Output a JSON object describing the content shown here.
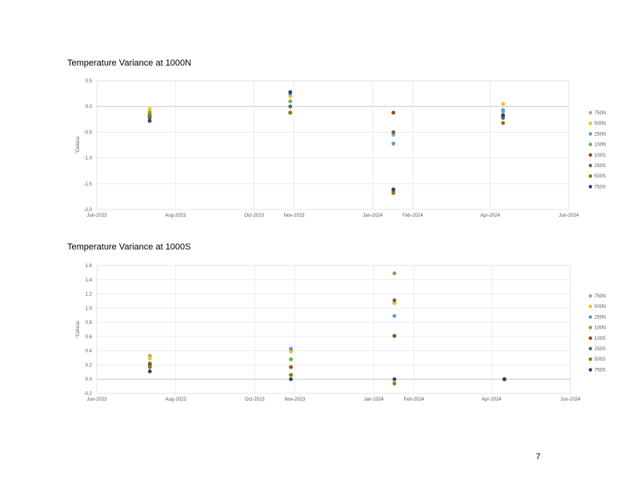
{
  "page_number": "7",
  "series_colors": {
    "750N": "#a5a5a5",
    "500N": "#ffc000",
    "250N": "#5b9bd5",
    "100N": "#70ad47",
    "100S": "#9e480e",
    "250S": "#636363",
    "500S": "#997300",
    "750S": "#264478"
  },
  "chart_data": [
    {
      "type": "scatter",
      "title": "Temperature Variance at 1000N",
      "xlabel": "",
      "ylabel": "°Celsius",
      "x_ticks": [
        "Jun-2023",
        "Aug-2023",
        "Oct-2023",
        "Nov-2023",
        "Jan-2024",
        "Feb-2024",
        "Apr-2024",
        "Jun-2024"
      ],
      "y_ticks": [
        "0.5",
        "0.0",
        "-0.5",
        "-1.0",
        "-1.5",
        "-2.0"
      ],
      "ylim": [
        -2.0,
        0.5
      ],
      "grid": true,
      "legend_position": "right",
      "x_dates": [
        "2023-07-12",
        "2023-10-29",
        "2024-01-17",
        "2024-04-11"
      ],
      "series": [
        {
          "name": "750N",
          "values": [
            -0.1,
            0.2,
            -0.55,
            -0.1
          ]
        },
        {
          "name": "500N",
          "values": [
            -0.05,
            0.2,
            -1.65,
            0.05
          ]
        },
        {
          "name": "250N",
          "values": [
            -0.15,
            0.25,
            -0.72,
            -0.07
          ]
        },
        {
          "name": "100N",
          "values": [
            -0.12,
            0.1,
            -1.63,
            -0.2
          ]
        },
        {
          "name": "100S",
          "values": [
            -0.2,
            -0.12,
            -0.12,
            -0.17
          ]
        },
        {
          "name": "250S",
          "values": [
            -0.22,
            0.0,
            -0.5,
            -0.22
          ]
        },
        {
          "name": "500S",
          "values": [
            -0.17,
            -0.12,
            -1.68,
            -0.32
          ]
        },
        {
          "name": "750S",
          "values": [
            -0.28,
            0.28,
            -1.61,
            -0.17
          ]
        }
      ]
    },
    {
      "type": "scatter",
      "title": "Temperature Variance at 1000S",
      "xlabel": "",
      "ylabel": "°Celsius",
      "x_ticks": [
        "Jun-2023",
        "Aug-2023",
        "Oct-2023",
        "Nov-2023",
        "Jan-2024",
        "Feb-2024",
        "Apr-2024",
        "Jun-2024"
      ],
      "y_ticks": [
        "1.6",
        "1.4",
        "1.2",
        "1.0",
        "0.8",
        "0.6",
        "0.4",
        "0.2",
        "0.0",
        "-0.2"
      ],
      "ylim": [
        -0.2,
        1.6
      ],
      "grid": true,
      "legend_position": "right",
      "x_dates": [
        "2023-07-12",
        "2023-10-29",
        "2024-01-17",
        "2024-04-11"
      ],
      "series": [
        {
          "name": "750N",
          "values": [
            0.33,
            0.41,
            1.07,
            0.0
          ]
        },
        {
          "name": "500N",
          "values": [
            0.29,
            0.39,
            1.07,
            0.0
          ]
        },
        {
          "name": "250N",
          "values": [
            0.22,
            0.43,
            0.89,
            0.0
          ]
        },
        {
          "name": "100N",
          "values": [
            0.21,
            0.28,
            1.49,
            0.0
          ]
        },
        {
          "name": "100S",
          "values": [
            0.2,
            0.17,
            0.61,
            0.0
          ]
        },
        {
          "name": "250S",
          "values": [
            0.22,
            0.06,
            1.11,
            0.0
          ]
        },
        {
          "name": "500S",
          "values": [
            0.17,
            0.06,
            -0.06,
            0.0
          ]
        },
        {
          "name": "750S",
          "values": [
            0.11,
            0.0,
            0.0,
            0.0
          ]
        }
      ]
    }
  ]
}
